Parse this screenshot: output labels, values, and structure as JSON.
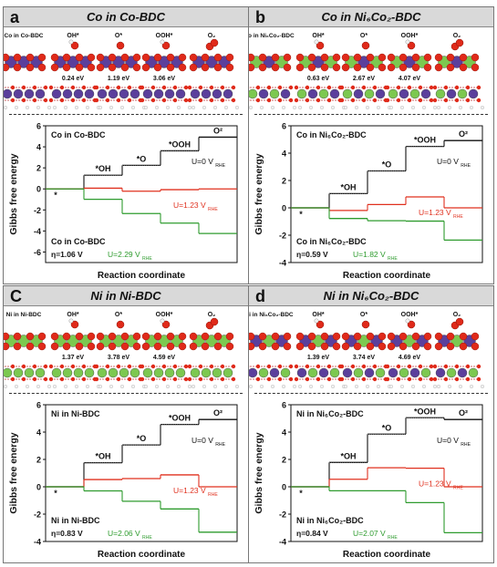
{
  "panels": [
    {
      "label": "a",
      "title": "Co in Co-BDC",
      "structure_labels": [
        "Co in Co-BDC",
        "OH*",
        "O*",
        "OOH*",
        "O₂"
      ],
      "step_energies": [
        "0.24 eV",
        "1.19 eV",
        "3.06 eV"
      ],
      "colors": {
        "site": "#5b3f9c",
        "frame": "#5b3f9c"
      },
      "ylabel": "Gibbs free energy",
      "xlabel": "Reaction coordinate",
      "inner_title": "Co in Co-BDC",
      "bottom_label": "Co in Co-BDC",
      "eta": "η=1.06 V",
      "u0": "U=0 V",
      "u123": "U=1.23 V",
      "uon": "U=2.29 V",
      "u_sub": "RHE",
      "species": [
        "*",
        "*OH",
        "*O",
        "*OOH",
        "O²"
      ],
      "chart_data": {
        "type": "line",
        "ylim": [
          -7,
          6
        ],
        "yticks": [
          -6,
          -4,
          -2,
          0,
          2,
          4,
          6
        ],
        "series": [
          {
            "name": "U=0 V",
            "color": "#111111",
            "values": [
              0,
              1.3,
              2.24,
              3.62,
              4.92
            ]
          },
          {
            "name": "U=1.23 V",
            "color": "#e0301e",
            "values": [
              0,
              0.07,
              -0.22,
              -0.07,
              0
            ]
          },
          {
            "name": "U=2.29 V",
            "color": "#2e9b2e",
            "values": [
              0,
              -0.99,
              -2.34,
              -3.25,
              -4.24
            ]
          }
        ]
      }
    },
    {
      "label": "b",
      "title": "Co in Ni₆Co₂-BDC",
      "structure_labels": [
        "Co in Ni₆Co₂-BDC",
        "OH*",
        "O*",
        "OOH*",
        "O₂"
      ],
      "step_energies": [
        "0.63 eV",
        "2.67 eV",
        "4.07 eV"
      ],
      "colors": {
        "site": "#5b3f9c",
        "frame": "#7cc850"
      },
      "ylabel": "Gibbs free energy",
      "xlabel": "Reaction coordinate",
      "inner_title": "Co in Ni₆Co₂-BDC",
      "bottom_label": "Co in Ni₆Co₂-BDC",
      "eta": "η=0.59 V",
      "u0": "U=0 V",
      "u123": "U=1.23 V",
      "uon": "U=1.82 V",
      "u_sub": "RHE",
      "species": [
        "*",
        "*OH",
        "*O",
        "*OOH",
        "O²"
      ],
      "chart_data": {
        "type": "line",
        "ylim": [
          -4,
          6
        ],
        "yticks": [
          -4,
          -2,
          0,
          2,
          4,
          6
        ],
        "series": [
          {
            "name": "U=0 V",
            "color": "#111111",
            "values": [
              0,
              1.04,
              2.7,
              4.49,
              4.92
            ]
          },
          {
            "name": "U=1.23 V",
            "color": "#e0301e",
            "values": [
              0,
              -0.19,
              0.24,
              0.8,
              0
            ]
          },
          {
            "name": "U=1.82 V",
            "color": "#2e9b2e",
            "values": [
              0,
              -0.78,
              -0.94,
              -0.97,
              -2.36
            ]
          }
        ]
      }
    },
    {
      "label": "C",
      "title": "Ni in Ni-BDC",
      "structure_labels": [
        "Ni in Ni-BDC",
        "OH*",
        "O*",
        "OOH*",
        "O₂"
      ],
      "step_energies": [
        "1.37 eV",
        "3.78 eV",
        "4.59 eV"
      ],
      "colors": {
        "site": "#7cc850",
        "frame": "#7cc850"
      },
      "ylabel": "Gibbs free energy",
      "xlabel": "Reaction coordinate",
      "inner_title": "Ni in Ni-BDC",
      "bottom_label": "Ni in Ni-BDC",
      "eta": "η=0.83 V",
      "u0": "U=0 V",
      "u123": "U=1.23 V",
      "uon": "U=2.06 V",
      "u_sub": "RHE",
      "species": [
        "*",
        "*OH",
        "*O",
        "*OOH",
        "O²"
      ],
      "chart_data": {
        "type": "line",
        "ylim": [
          -4,
          6
        ],
        "yticks": [
          -4,
          -2,
          0,
          2,
          4,
          6
        ],
        "series": [
          {
            "name": "U=0 V",
            "color": "#111111",
            "values": [
              0,
              1.76,
              3.06,
              4.56,
              4.92
            ]
          },
          {
            "name": "U=1.23 V",
            "color": "#e0301e",
            "values": [
              0,
              0.53,
              0.6,
              0.87,
              0
            ]
          },
          {
            "name": "U=2.06 V",
            "color": "#2e9b2e",
            "values": [
              0,
              -0.3,
              -1.06,
              -1.62,
              -3.32
            ]
          }
        ]
      }
    },
    {
      "label": "d",
      "title": "Ni in Ni₆Co₂-BDC",
      "structure_labels": [
        "Ni in Ni₆Co₂-BDC",
        "OH*",
        "O*",
        "OOH*",
        "O₂"
      ],
      "step_energies": [
        "1.39 eV",
        "3.74 eV",
        "4.69 eV"
      ],
      "colors": {
        "site": "#7cc850",
        "frame": "#5b3f9c"
      },
      "ylabel": "Gibbs free energy",
      "xlabel": "Reaction coordinate",
      "inner_title": "Ni in Ni₆Co₂-BDC",
      "bottom_label": "Ni in Ni₆Co₂-BDC",
      "eta": "η=0.84 V",
      "u0": "U=0 V",
      "u123": "U=1.23 V",
      "uon": "U=2.07 V",
      "u_sub": "RHE",
      "species": [
        "*",
        "*OH",
        "*O",
        "*OOH",
        "O²"
      ],
      "chart_data": {
        "type": "line",
        "ylim": [
          -4,
          6
        ],
        "yticks": [
          -4,
          -2,
          0,
          2,
          4,
          6
        ],
        "series": [
          {
            "name": "U=0 V",
            "color": "#111111",
            "values": [
              0,
              1.78,
              3.85,
              5.05,
              4.92
            ]
          },
          {
            "name": "U=1.23 V",
            "color": "#e0301e",
            "values": [
              0,
              0.55,
              1.39,
              1.36,
              0
            ]
          },
          {
            "name": "U=2.07 V",
            "color": "#2e9b2e",
            "values": [
              0,
              -0.29,
              -0.29,
              -1.16,
              -3.36
            ]
          }
        ]
      }
    }
  ]
}
